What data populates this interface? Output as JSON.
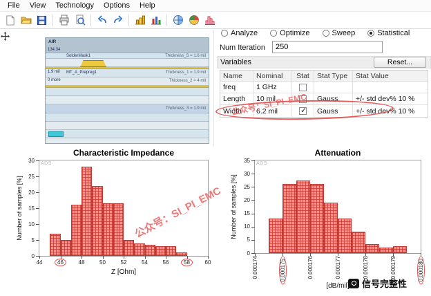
{
  "menu": {
    "items": [
      "File",
      "View",
      "Technology",
      "Options",
      "Help"
    ]
  },
  "toolbar": {
    "icons": [
      "new-document",
      "open-folder",
      "save",
      "print",
      "print-preview",
      "undo",
      "redo",
      "bar-chart",
      "multi-chart",
      "em-setup",
      "simulation-results",
      "histogram-results"
    ]
  },
  "stackup": {
    "air_label": "AIR",
    "dim_labels": [
      "134.34",
      "1.9 mil",
      "0 more"
    ],
    "layer_labels": [
      "SolderMask1",
      "MT_A_Prepreg1"
    ],
    "thickness_labels": [
      "Thickness_S = 1.6 mil",
      "Thickness_1 = 1.9 mil",
      "Thickness_2 = 4 mil",
      "Thickness_3 = 1.9 mil"
    ]
  },
  "analysis": {
    "modes": [
      {
        "label": "Analyze",
        "selected": false
      },
      {
        "label": "Optimize",
        "selected": false
      },
      {
        "label": "Sweep",
        "selected": false
      },
      {
        "label": "Statistical",
        "selected": true
      }
    ],
    "num_iteration_label": "Num Iteration",
    "num_iteration_value": "250",
    "variables_label": "Variables",
    "reset_button": "Reset...",
    "table": {
      "headers": [
        "Name",
        "Nominal",
        "Stat",
        "Stat Type",
        "Stat Value"
      ],
      "rows": [
        {
          "name": "freq",
          "nominal": "1 GHz",
          "stat_checked": false,
          "stat_type": "",
          "stat_value": ""
        },
        {
          "name": "Length",
          "nominal": "10 mil",
          "stat_checked": false,
          "stat_type": "Gauss",
          "stat_value": "+/- std dev% 10 %"
        },
        {
          "name": "Width",
          "nominal": "6.2 mil",
          "stat_checked": true,
          "stat_type": "Gauss",
          "stat_value": "+/- std dev% 10 %"
        }
      ]
    }
  },
  "watermarks": {
    "account": "公众号：SI_PI_EMC",
    "credit": "信号完整性"
  },
  "chart_data": [
    {
      "type": "bar",
      "title": "Characteristic Impedance",
      "xlabel": "Z [Ohm]",
      "ylabel": "Number of samples [%]",
      "corner_label": "ADS",
      "xlim": [
        44,
        60
      ],
      "ylim": [
        0,
        30
      ],
      "xticks": [
        44,
        46,
        48,
        50,
        52,
        54,
        56,
        58,
        60
      ],
      "yticks": [
        0,
        5,
        10,
        15,
        20,
        25,
        30
      ],
      "bin_start": 45,
      "bin_width": 1,
      "values": [
        7,
        5,
        16,
        28,
        22,
        16.5,
        16.5,
        5,
        4,
        3.5,
        3,
        3,
        1
      ],
      "circled_xticks": [
        "46",
        "58"
      ],
      "rotate_xticks": false,
      "grid": false,
      "legend": "none"
    },
    {
      "type": "bar",
      "title": "Attenuation",
      "xlabel": "[dB/mil]",
      "ylabel": "Number of samples [%]",
      "corner_label": "ADS",
      "xlim": [
        0.000174,
        0.00018
      ],
      "ylim": [
        0,
        35
      ],
      "xticks": [
        0.000174,
        0.000175,
        0.000176,
        0.000177,
        0.000178,
        0.000179,
        0.00018
      ],
      "xtick_labels": [
        "0.000174",
        "0.000175",
        "0.000176",
        "0.000177",
        "0.000178",
        "0.000179",
        "0.000180"
      ],
      "yticks": [
        0,
        5,
        10,
        15,
        20,
        25,
        30,
        35
      ],
      "bin_start": 0.0001745,
      "bin_width": 5e-07,
      "values": [
        13,
        26,
        27.5,
        26,
        19,
        13,
        8,
        3.5,
        2,
        2.5
      ],
      "circled_xticks": [
        "0.000175",
        "0.000180"
      ],
      "rotate_xticks": true,
      "grid": false,
      "legend": "none"
    }
  ]
}
